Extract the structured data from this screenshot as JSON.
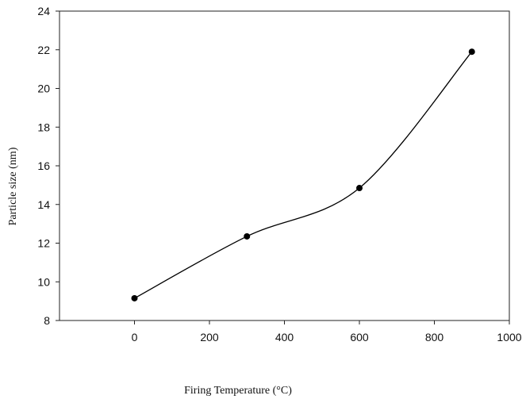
{
  "chart_data": {
    "type": "line",
    "title": "",
    "xlabel": "Firing Temperature (°C)",
    "ylabel": "Particle size (nm)",
    "xlim": [
      -200,
      1000
    ],
    "ylim": [
      8,
      24
    ],
    "x_ticks": [
      0,
      200,
      400,
      600,
      800,
      1000
    ],
    "y_ticks": [
      8,
      10,
      12,
      14,
      16,
      18,
      20,
      22,
      24
    ],
    "grid": false,
    "legend": "none",
    "series": [
      {
        "x": [
          0,
          300,
          600,
          900
        ],
        "y": [
          9.15,
          12.35,
          14.85,
          21.9
        ]
      }
    ],
    "colors": {
      "line": "#000000",
      "marker": "#000000"
    }
  }
}
